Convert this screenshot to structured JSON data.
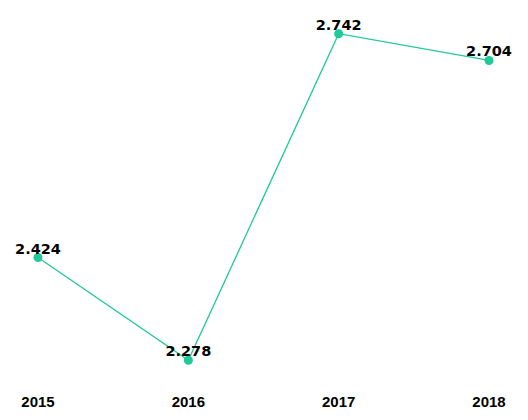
{
  "chart_data": {
    "type": "line",
    "categories": [
      "2015",
      "2016",
      "2017",
      "2018"
    ],
    "values": [
      2.424,
      2.278,
      2.742,
      2.704
    ],
    "color": "#20c997",
    "marker": "circle",
    "line_style": "solid",
    "ylim": [
      2.25,
      2.77
    ],
    "grid": false,
    "data_labels": true,
    "tick_labels": "x"
  }
}
